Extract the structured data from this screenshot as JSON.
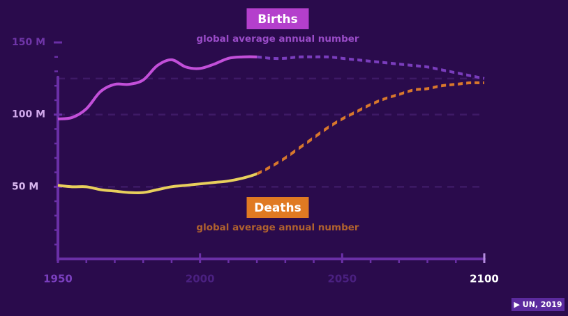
{
  "chart_data": {
    "type": "line",
    "x": [
      1950,
      1955,
      1960,
      1965,
      1970,
      1975,
      1980,
      1985,
      1990,
      1995,
      2000,
      2005,
      2010,
      2015,
      2020,
      2025,
      2030,
      2035,
      2040,
      2045,
      2050,
      2055,
      2060,
      2065,
      2070,
      2075,
      2080,
      2085,
      2090,
      2095,
      2100
    ],
    "series": [
      {
        "name": "Births",
        "subtitle": "global average annual number",
        "color": "#c24fd9",
        "projection_color": "#7a3dbd",
        "values": [
          97,
          98,
          104,
          116,
          121,
          121,
          124,
          134,
          138,
          133,
          132,
          135,
          139,
          140,
          140,
          139,
          139,
          140,
          140,
          140,
          139,
          138,
          137,
          136,
          135,
          134,
          133,
          131,
          129,
          127,
          125
        ]
      },
      {
        "name": "Deaths",
        "subtitle": "global average annual number",
        "color": "#e8cf5c",
        "projection_color": "#d9782c",
        "values": [
          51,
          50,
          50,
          48,
          47,
          46,
          46,
          48,
          50,
          51,
          52,
          53,
          54,
          56,
          59,
          64,
          70,
          77,
          84,
          91,
          97,
          102,
          107,
          111,
          114,
          117,
          118,
          120,
          121,
          122,
          122
        ]
      }
    ],
    "projected_from": 2020,
    "xlim": [
      1950,
      2100
    ],
    "xticks": [
      1950,
      2000,
      2050,
      2100
    ],
    "xminorticks": [
      1960,
      1970,
      1980,
      1990,
      2010,
      2020,
      2030,
      2040,
      2060,
      2070,
      2080,
      2090
    ],
    "ylim": [
      0,
      150
    ],
    "yticks": [
      {
        "value": 50,
        "label": "50 M"
      },
      {
        "value": 100,
        "label": "100 M"
      },
      {
        "value": 150,
        "label": "150 M"
      }
    ],
    "yminorticks": [
      10,
      20,
      30,
      40,
      60,
      70,
      80,
      90,
      110,
      120,
      130,
      140
    ],
    "gridlines": [
      50,
      100,
      125
    ],
    "source": "▶ UN, 2019"
  }
}
